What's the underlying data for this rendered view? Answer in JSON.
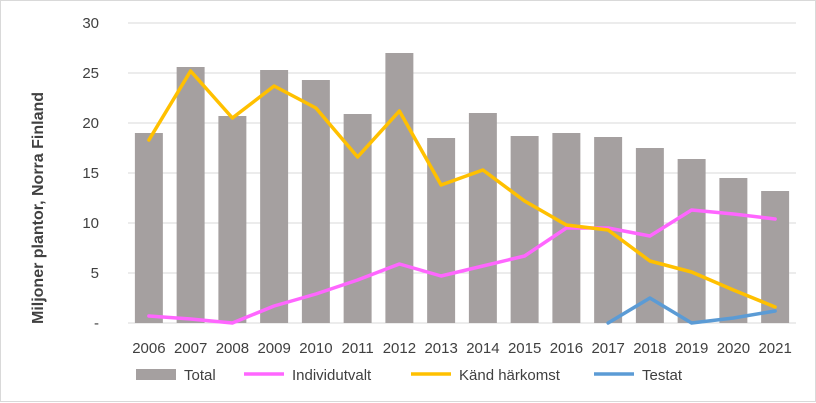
{
  "chart_data": {
    "type": "bar",
    "ylabel": "Miljoner plantor, Norra Finland",
    "xlabel": "",
    "ylim": [
      0,
      30
    ],
    "y_ticks": [
      "-",
      "5",
      "10",
      "15",
      "20",
      "25",
      "30"
    ],
    "grid": true,
    "legend_position": "bottom",
    "categories": [
      "2006",
      "2007",
      "2008",
      "2009",
      "2010",
      "2011",
      "2012",
      "2013",
      "2014",
      "2015",
      "2016",
      "2017",
      "2018",
      "2019",
      "2020",
      "2021"
    ],
    "series": [
      {
        "name": "Total",
        "kind": "bar",
        "color": "#a5a0a0",
        "values": [
          19.0,
          25.6,
          20.7,
          25.3,
          24.3,
          20.9,
          27.0,
          18.5,
          21.0,
          18.7,
          19.0,
          18.6,
          17.5,
          16.4,
          14.5,
          13.2
        ]
      },
      {
        "name": "Individutvalt",
        "kind": "line",
        "color": "#ff66ff",
        "values": [
          0.7,
          0.4,
          0.0,
          1.7,
          2.9,
          4.3,
          5.9,
          4.7,
          5.7,
          6.7,
          9.5,
          9.5,
          8.7,
          11.3,
          10.9,
          10.4
        ]
      },
      {
        "name": "Känd härkomst",
        "kind": "line",
        "color": "#ffc000",
        "values": [
          18.3,
          25.2,
          20.5,
          23.7,
          21.5,
          16.6,
          21.2,
          13.8,
          15.3,
          12.2,
          9.8,
          9.3,
          6.2,
          5.1,
          3.3,
          1.6
        ]
      },
      {
        "name": "Testat",
        "kind": "line",
        "color": "#5b9bd5",
        "values": [
          null,
          null,
          null,
          null,
          null,
          null,
          null,
          null,
          null,
          null,
          null,
          0.0,
          2.5,
          0.0,
          0.5,
          1.2
        ]
      }
    ]
  }
}
